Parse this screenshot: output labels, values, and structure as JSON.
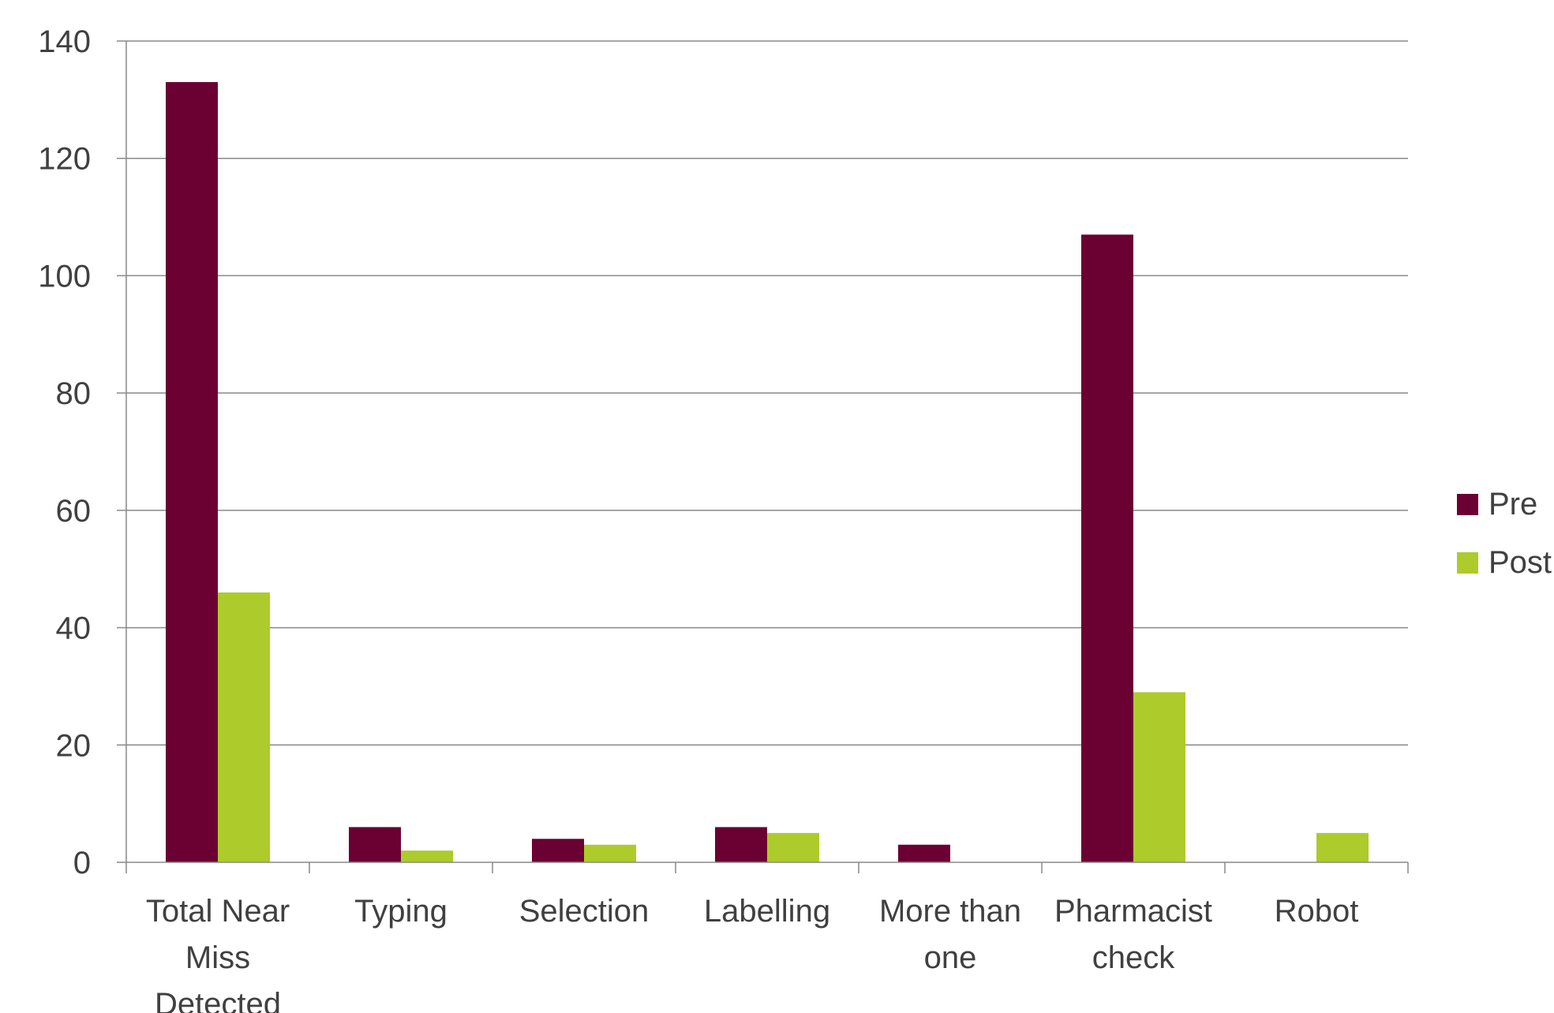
{
  "chart_data": {
    "type": "bar",
    "categories": [
      [
        "Total Near",
        "Miss",
        "Detected"
      ],
      [
        "Typing"
      ],
      [
        "Selection"
      ],
      [
        "Labelling"
      ],
      [
        "More than",
        "one"
      ],
      [
        "Pharmacist",
        "check"
      ],
      [
        "Robot"
      ]
    ],
    "series": [
      {
        "name": "Pre",
        "color": "#6b0033",
        "values": [
          133,
          6,
          4,
          6,
          3,
          107,
          0
        ]
      },
      {
        "name": "Post",
        "color": "#adcb2a",
        "values": [
          46,
          2,
          3,
          5,
          0,
          29,
          5
        ]
      }
    ],
    "ylim": [
      0,
      140
    ],
    "yticks": [
      0,
      20,
      40,
      60,
      80,
      100,
      120,
      140
    ],
    "grid": true,
    "legend": "right",
    "title": "",
    "xlabel": "",
    "ylabel": ""
  }
}
